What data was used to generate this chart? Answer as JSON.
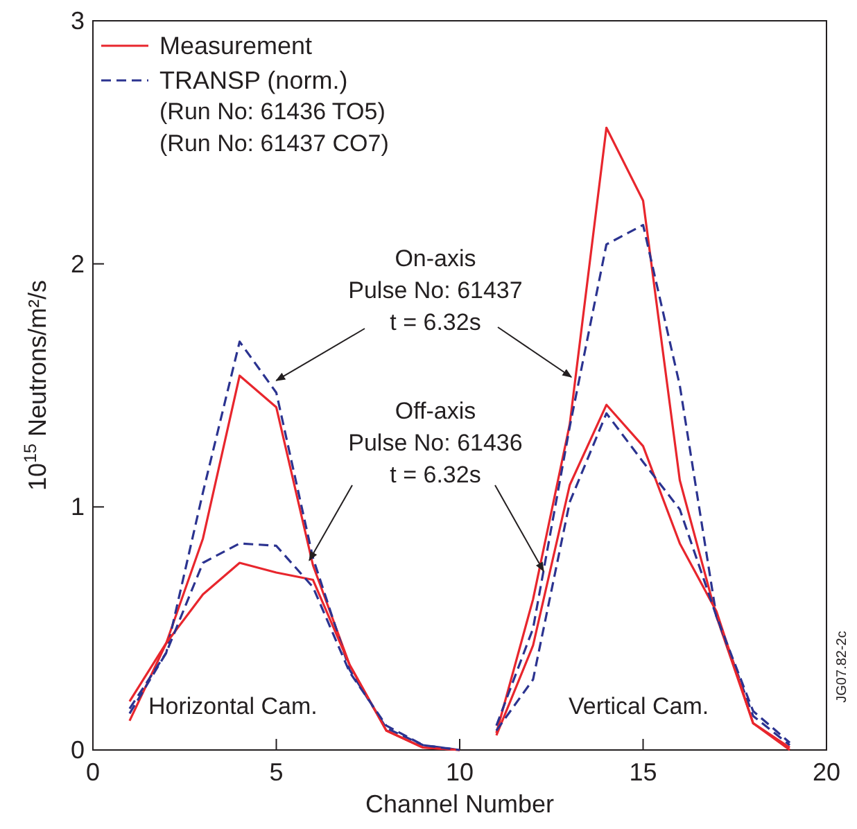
{
  "chart_data": {
    "type": "line",
    "xlabel": "Channel Number",
    "ylabel": "10$^{15}$ Neutrons/m²/s",
    "x": [
      1,
      2,
      3,
      4,
      5,
      6,
      7,
      8,
      9,
      10,
      10.5,
      11,
      12,
      13,
      14,
      15,
      16,
      17,
      18,
      19
    ],
    "xlim": [
      0,
      20
    ],
    "xticks": [
      0,
      5,
      10,
      15,
      20
    ],
    "ylim": [
      0,
      3
    ],
    "yticks": [
      0,
      1,
      2,
      3
    ],
    "grid": false,
    "legend": "top left",
    "series": [
      {
        "name": "Measurement",
        "color": "#e8262d",
        "line_style": "solid",
        "values": [
          0.12,
          0.44,
          0.87,
          1.54,
          1.41,
          0.76,
          0.35,
          0.08,
          0.01,
          0,
          null,
          0.07,
          0.62,
          1.34,
          2.56,
          2.26,
          1.11,
          0.55,
          0.11,
          0.01
        ]
      },
      {
        "name": "TRANSP (norm.)",
        "color": "#2b3390",
        "line_style": "dashed",
        "values": [
          0.17,
          0.4,
          1.06,
          1.68,
          1.47,
          0.79,
          0.33,
          0.09,
          0.02,
          0,
          null,
          0.1,
          0.5,
          1.33,
          2.08,
          2.16,
          1.5,
          0.55,
          0.14,
          0.02
        ]
      },
      {
        "color": "#e8262d",
        "line_style": "solid",
        "values": [
          0.2,
          0.44,
          0.64,
          0.77,
          0.73,
          0.7,
          0.35,
          0.08,
          0.01,
          0,
          null,
          0.06,
          0.43,
          1.09,
          1.42,
          1.25,
          0.85,
          0.57,
          0.11,
          0
        ]
      },
      {
        "color": "#2b3390",
        "line_style": "dashed",
        "values": [
          0.15,
          0.4,
          0.77,
          0.85,
          0.84,
          0.67,
          0.32,
          0.1,
          0.02,
          0,
          null,
          0.08,
          0.29,
          1.02,
          1.385,
          1.185,
          0.99,
          0.55,
          0.16,
          0.03
        ]
      }
    ],
    "annotations": [
      "(Run No: 61436 TO5)\n(Run No: 61437 CO7)",
      {
        "text": "On-axis\nPulse No: 61437\nt = 6.32s",
        "x": 5,
        "y": 1.52
      },
      {
        "text": "Off-axis\nPulse No: 61436\nt = 6.32s",
        "x": 5.9,
        "y": 0.78
      },
      "Horizontal Cam.",
      "Vertical Cam.",
      "JG07.82-2c"
    ]
  }
}
